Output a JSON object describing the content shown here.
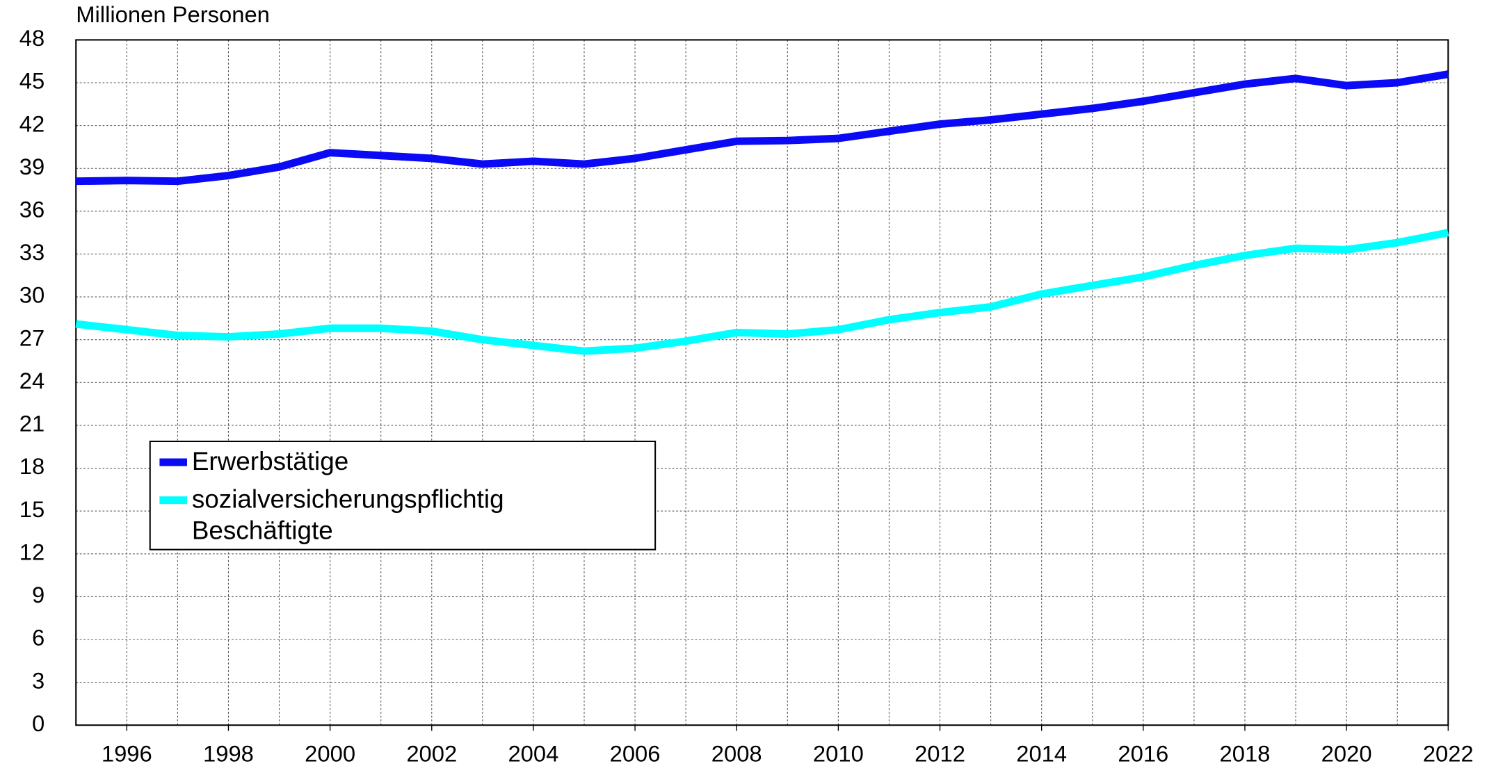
{
  "chart_data": {
    "type": "line",
    "y_axis_label": "Millionen Personen",
    "x": [
      1995,
      1996,
      1997,
      1998,
      1999,
      2000,
      2001,
      2002,
      2003,
      2004,
      2005,
      2006,
      2007,
      2008,
      2009,
      2010,
      2011,
      2012,
      2013,
      2014,
      2015,
      2016,
      2017,
      2018,
      2019,
      2020,
      2021,
      2022
    ],
    "series": [
      {
        "name": "Erwerbstätige",
        "color": "#0a0af5",
        "values": [
          38.1,
          38.15,
          38.1,
          38.5,
          39.1,
          40.1,
          39.9,
          39.7,
          39.3,
          39.5,
          39.3,
          39.7,
          40.3,
          40.9,
          40.95,
          41.1,
          41.6,
          42.1,
          42.4,
          42.8,
          43.2,
          43.7,
          44.3,
          44.9,
          45.3,
          44.8,
          45.0,
          45.6
        ]
      },
      {
        "name": "sozialversicherungspflichtig Beschäftigte",
        "color": "#00ffff",
        "values": [
          28.1,
          27.7,
          27.3,
          27.2,
          27.4,
          27.8,
          27.8,
          27.6,
          27.0,
          26.6,
          26.2,
          26.4,
          26.9,
          27.5,
          27.4,
          27.7,
          28.4,
          28.9,
          29.3,
          30.2,
          30.8,
          31.4,
          32.2,
          32.9,
          33.4,
          33.3,
          33.8,
          34.5
        ]
      }
    ],
    "xlim": [
      1995,
      2022
    ],
    "xticks": [
      1996,
      1998,
      2000,
      2002,
      2004,
      2006,
      2008,
      2010,
      2012,
      2014,
      2016,
      2018,
      2020,
      2022
    ],
    "ylim": [
      0,
      48
    ],
    "yticks": [
      0,
      3,
      6,
      9,
      12,
      15,
      18,
      21,
      24,
      27,
      30,
      33,
      36,
      39,
      42,
      45,
      48
    ],
    "grid": true,
    "legend_position": "left"
  }
}
